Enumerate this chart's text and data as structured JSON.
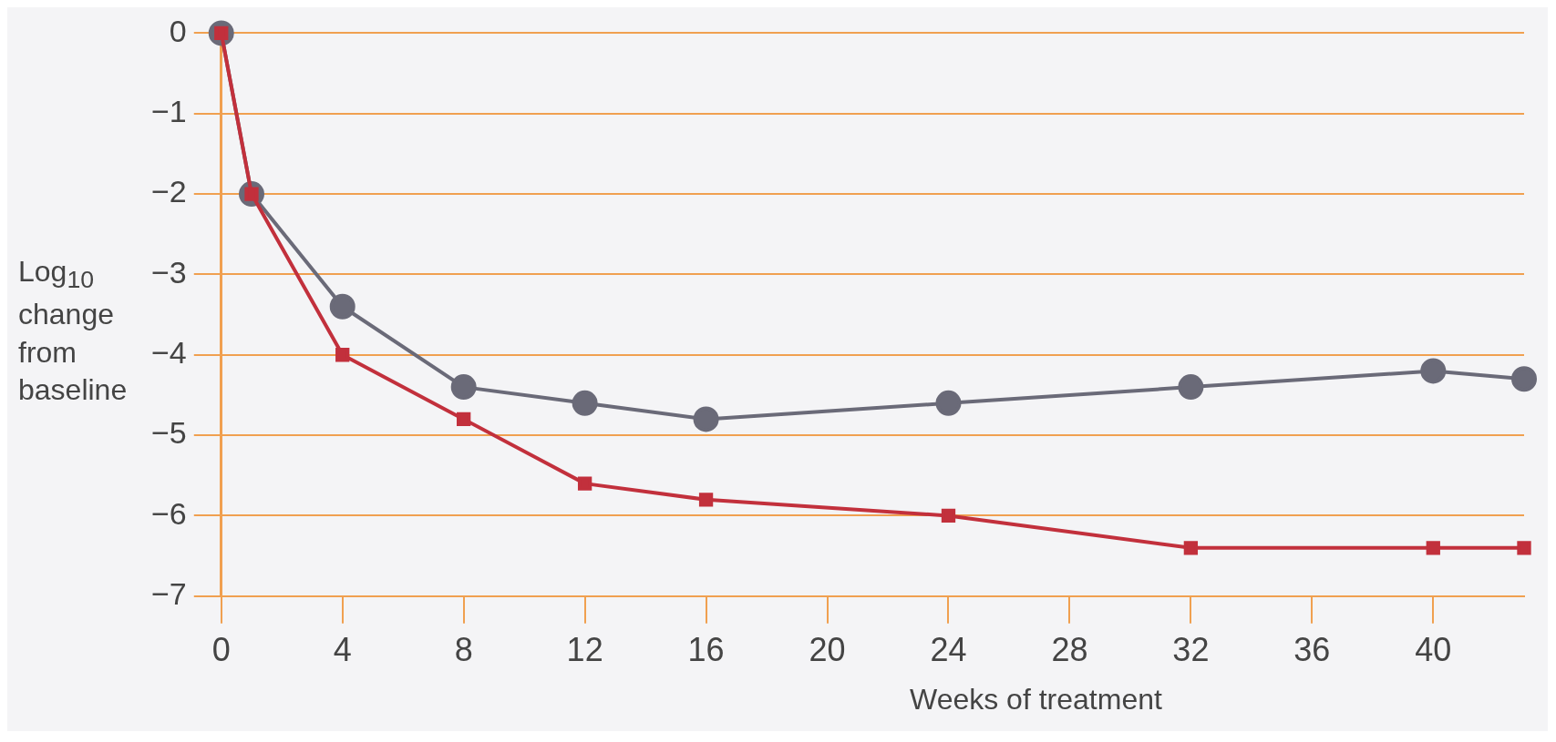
{
  "chart_data": {
    "type": "line",
    "xlabel": "Weeks of treatment",
    "ylabel": "Log$_{10}$ change from baseline",
    "xlim": [
      0,
      43
    ],
    "xticks": [
      0,
      4,
      8,
      12,
      16,
      20,
      24,
      28,
      32,
      36,
      40
    ],
    "ylim": [
      -7,
      0
    ],
    "yticks": [
      0,
      {
        "value": -1,
        "label": "−1"
      },
      {
        "value": -2,
        "label": "−2"
      },
      {
        "value": -3,
        "label": "−3"
      },
      {
        "value": -4,
        "label": "−4"
      },
      {
        "value": -5,
        "label": "−5"
      },
      {
        "value": -6,
        "label": "−6"
      },
      {
        "value": -7,
        "label": "−7"
      }
    ],
    "grid": "y",
    "line_style": "solid",
    "series": [
      {
        "color": "#c2303c",
        "marker": "square",
        "x": [
          0,
          1,
          4,
          8,
          12,
          16,
          24,
          32,
          40,
          43
        ],
        "values": [
          0,
          -2,
          -4,
          -4.8,
          -5.6,
          -5.8,
          -6,
          -6.4,
          -6.4,
          -6.4
        ]
      },
      {
        "color": "#6a6a78",
        "marker": "circle",
        "x": [
          0,
          1,
          4,
          8,
          12,
          16,
          24,
          32,
          40,
          43
        ],
        "values": [
          0,
          -2,
          -3.4,
          -4.4,
          -4.6,
          -4.8,
          -4.6,
          -4.4,
          -4.2,
          -4.3
        ]
      }
    ]
  }
}
